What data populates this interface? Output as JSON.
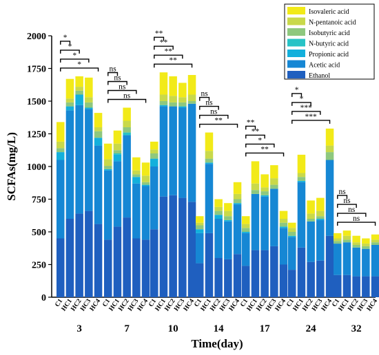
{
  "chart_data": {
    "type": "bar",
    "stacked": true,
    "xlabel": "Time(day)",
    "ylabel": "SCFAs(mg/L)",
    "ylim": [
      0,
      2000
    ],
    "yticks": [
      0,
      250,
      500,
      750,
      1000,
      1250,
      1500,
      1750,
      2000
    ],
    "days": [
      "3",
      "7",
      "10",
      "14",
      "17",
      "24",
      "32"
    ],
    "groups": [
      "C1",
      "HC1",
      "HC2",
      "HC3",
      "HC4"
    ],
    "legend_position": "top-right",
    "series": [
      {
        "name": "Ethanol",
        "color": "#1f5fbf"
      },
      {
        "name": "Acetic acid",
        "color": "#1687d4"
      },
      {
        "name": "Propionic acid",
        "color": "#13b0dc"
      },
      {
        "name": "N-butyric acid",
        "color": "#27c3c6"
      },
      {
        "name": "Isobutyric acid",
        "color": "#8ec87e"
      },
      {
        "name": "N-pentanoic acid",
        "color": "#c9d94a"
      },
      {
        "name": "Isovaleric acid",
        "color": "#f2ea18"
      }
    ],
    "data": [
      [
        [
          450,
          600,
          60,
          0,
          30,
          50,
          150
        ],
        [
          600,
          830,
          30,
          0,
          30,
          30,
          150
        ],
        [
          640,
          830,
          80,
          0,
          30,
          30,
          80
        ],
        [
          660,
          780,
          10,
          0,
          40,
          40,
          150
        ],
        [
          560,
          600,
          60,
          0,
          50,
          30,
          110
        ]
      ],
      [
        [
          440,
          530,
          10,
          0,
          25,
          50,
          120
        ],
        [
          540,
          500,
          50,
          10,
          25,
          50,
          100
        ],
        [
          610,
          630,
          0,
          20,
          40,
          50,
          100
        ],
        [
          450,
          420,
          50,
          0,
          20,
          30,
          100
        ],
        [
          440,
          410,
          10,
          0,
          20,
          50,
          100
        ]
      ],
      [
        [
          520,
          480,
          60,
          0,
          40,
          30,
          60
        ],
        [
          770,
          690,
          10,
          0,
          30,
          50,
          170
        ],
        [
          780,
          680,
          0,
          0,
          30,
          50,
          150
        ],
        [
          760,
          690,
          10,
          0,
          30,
          40,
          110
        ],
        [
          730,
          750,
          0,
          0,
          20,
          50,
          150
        ]
      ],
      [
        [
          260,
          230,
          30,
          0,
          30,
          20,
          50
        ],
        [
          490,
          530,
          10,
          0,
          30,
          60,
          140
        ],
        [
          300,
          300,
          30,
          0,
          30,
          30,
          60
        ],
        [
          290,
          290,
          10,
          0,
          30,
          40,
          60
        ],
        [
          330,
          380,
          10,
          0,
          30,
          40,
          90
        ]
      ],
      [
        [
          240,
          250,
          10,
          0,
          30,
          30,
          60
        ],
        [
          360,
          430,
          0,
          0,
          30,
          50,
          170
        ],
        [
          360,
          410,
          10,
          0,
          30,
          30,
          100
        ],
        [
          390,
          440,
          0,
          0,
          30,
          50,
          100
        ],
        [
          250,
          280,
          10,
          0,
          30,
          30,
          60
        ]
      ],
      [
        [
          210,
          250,
          10,
          0,
          30,
          30,
          40
        ],
        [
          380,
          500,
          10,
          0,
          30,
          30,
          140
        ],
        [
          270,
          310,
          0,
          0,
          20,
          40,
          100
        ],
        [
          280,
          310,
          10,
          0,
          20,
          40,
          100
        ],
        [
          470,
          580,
          0,
          0,
          60,
          50,
          130
        ]
      ],
      [
        [
          170,
          240,
          0,
          0,
          20,
          20,
          40
        ],
        [
          170,
          250,
          0,
          0,
          20,
          30,
          40
        ],
        [
          160,
          220,
          0,
          0,
          20,
          20,
          50
        ],
        [
          160,
          210,
          0,
          0,
          20,
          20,
          40
        ],
        [
          160,
          240,
          0,
          0,
          20,
          20,
          40
        ]
      ]
    ],
    "annotations": [
      {
        "day": "3",
        "pairs": [
          [
            "C1",
            "HC1",
            "*"
          ],
          [
            "C1",
            "HC2",
            "*"
          ],
          [
            "C1",
            "HC3",
            "*"
          ],
          [
            "C1",
            "HC4",
            "*"
          ]
        ]
      },
      {
        "day": "7",
        "pairs": [
          [
            "C1",
            "HC1",
            "ns"
          ],
          [
            "C1",
            "HC2",
            "ns"
          ],
          [
            "C1",
            "HC3",
            "ns"
          ],
          [
            "C1",
            "HC4",
            "ns"
          ]
        ]
      },
      {
        "day": "10",
        "pairs": [
          [
            "C1",
            "HC1",
            "**"
          ],
          [
            "C1",
            "HC2",
            "**"
          ],
          [
            "C1",
            "HC3",
            "**"
          ],
          [
            "C1",
            "HC4",
            "**"
          ]
        ]
      },
      {
        "day": "14",
        "pairs": [
          [
            "C1",
            "HC1",
            "ns"
          ],
          [
            "C1",
            "HC2",
            "ns"
          ],
          [
            "C1",
            "HC3",
            "ns"
          ],
          [
            "C1",
            "HC4",
            "**"
          ]
        ]
      },
      {
        "day": "17",
        "pairs": [
          [
            "C1",
            "HC1",
            "**"
          ],
          [
            "C1",
            "HC2",
            "**"
          ],
          [
            "C1",
            "HC3",
            "*"
          ],
          [
            "C1",
            "HC4",
            "**"
          ]
        ]
      },
      {
        "day": "24",
        "pairs": [
          [
            "C1",
            "HC1",
            "*"
          ],
          [
            "C1",
            "HC2",
            "*"
          ],
          [
            "C1",
            "HC3",
            "***"
          ],
          [
            "C1",
            "HC4",
            "***"
          ]
        ]
      },
      {
        "day": "32",
        "pairs": [
          [
            "C1",
            "HC1",
            "ns"
          ],
          [
            "C1",
            "HC2",
            "ns"
          ],
          [
            "C1",
            "HC3",
            "ns"
          ],
          [
            "C1",
            "HC4",
            "ns"
          ]
        ]
      }
    ]
  }
}
